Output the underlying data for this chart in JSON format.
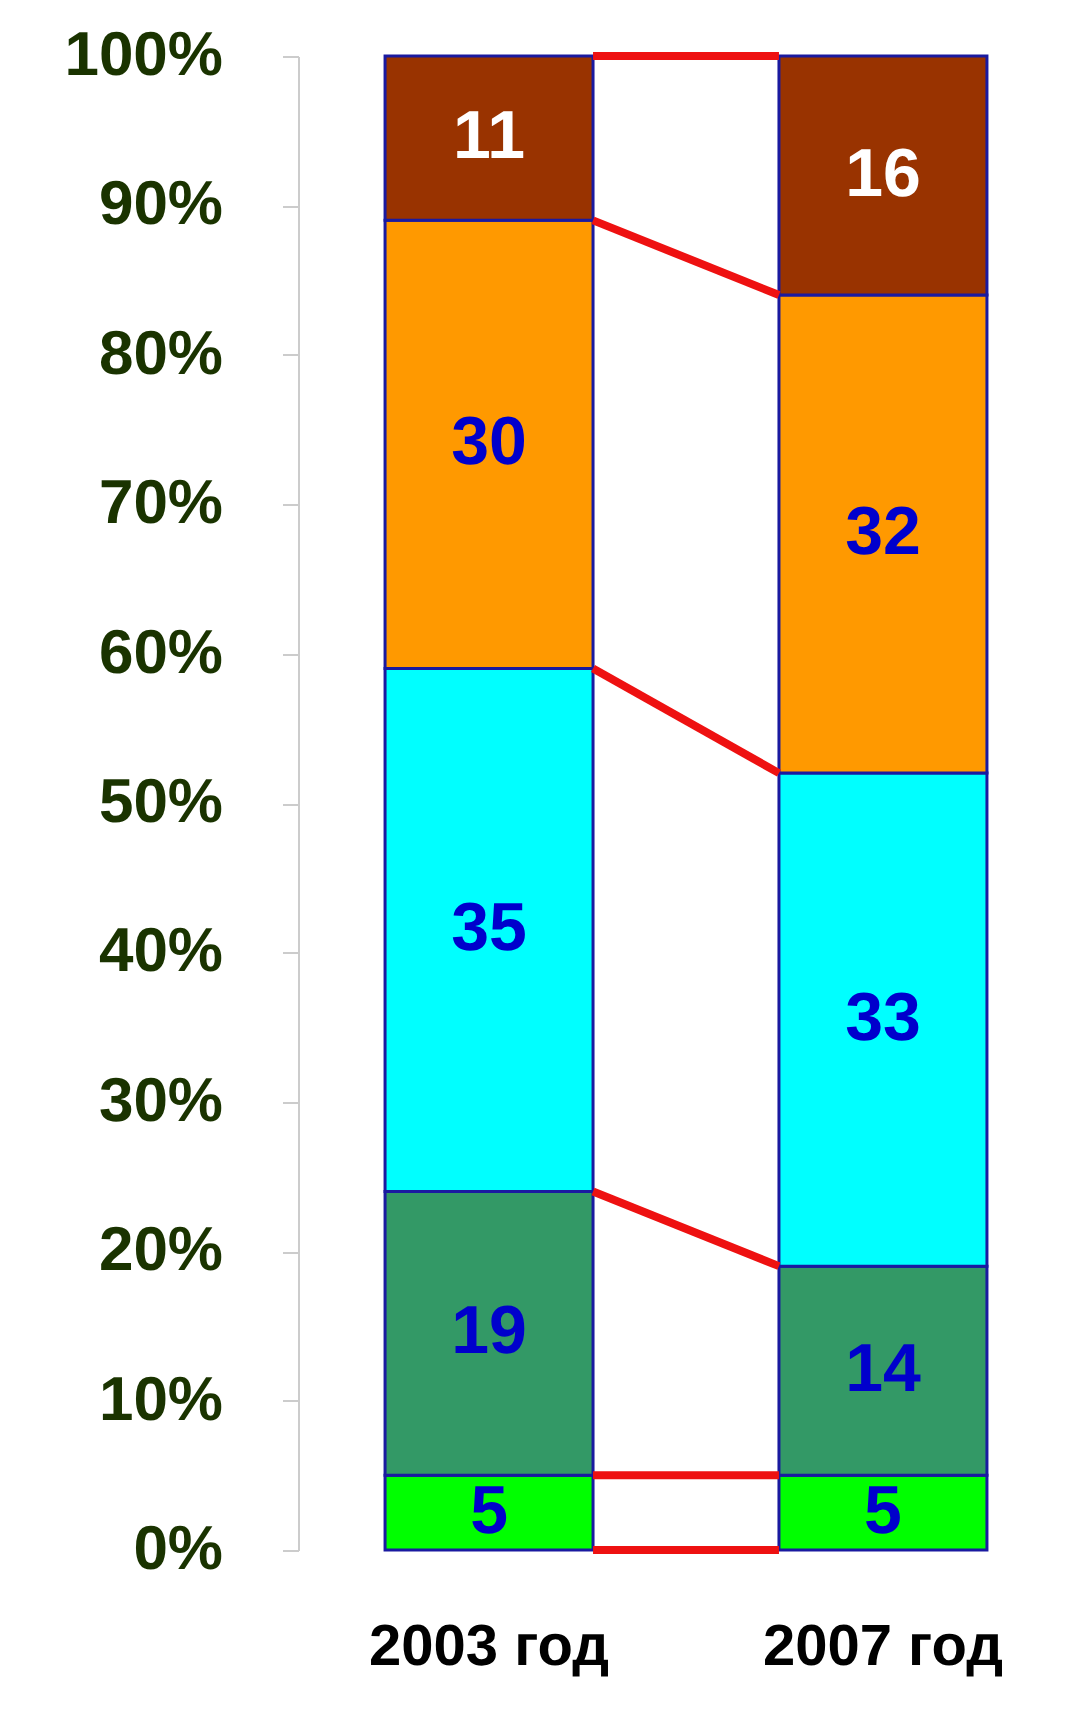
{
  "chart_data": {
    "type": "bar",
    "stacked": true,
    "categories": [
      "2003 год",
      "2007 год"
    ],
    "series": [
      {
        "color": "#00ff00",
        "values": [
          5,
          5
        ]
      },
      {
        "color": "#339966",
        "values": [
          19,
          14
        ]
      },
      {
        "color": "#00ffff",
        "values": [
          35,
          33
        ]
      },
      {
        "color": "#ff9900",
        "values": [
          30,
          32
        ]
      },
      {
        "color": "#993300",
        "values": [
          11,
          16
        ]
      }
    ],
    "ylim": [
      0,
      100
    ],
    "yticks": [
      {
        "value": 0,
        "label": "0%"
      },
      {
        "value": 10,
        "label": "10%"
      },
      {
        "value": 20,
        "label": "20%"
      },
      {
        "value": 30,
        "label": "30%"
      },
      {
        "value": 40,
        "label": "40%"
      },
      {
        "value": 50,
        "label": "50%"
      },
      {
        "value": 60,
        "label": "60%"
      },
      {
        "value": 70,
        "label": "70%"
      },
      {
        "value": 80,
        "label": "80%"
      },
      {
        "value": 90,
        "label": "90%"
      },
      {
        "value": 100,
        "label": "100%"
      }
    ],
    "data_labels": true,
    "grid": false
  }
}
